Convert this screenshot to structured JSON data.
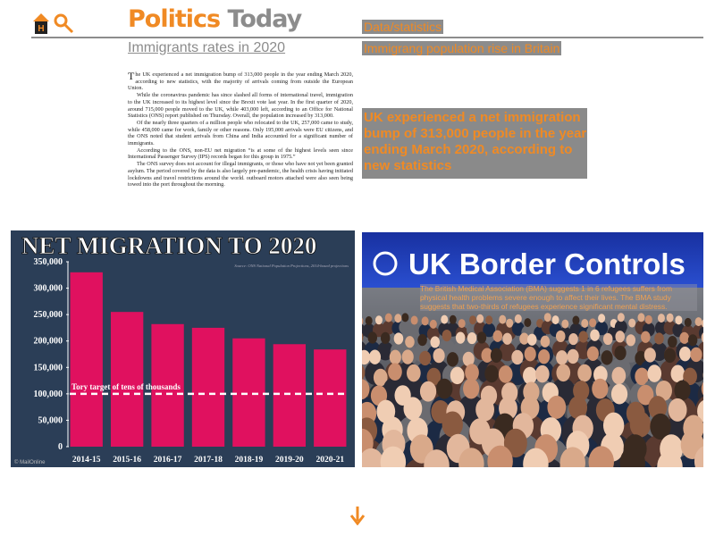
{
  "header": {
    "brand_1": "Politics",
    "brand_2": "Today",
    "subtitle": "Immigrants rates in 2020",
    "section": "Data/statistics",
    "section_title": "Immigrang population rise in Britain"
  },
  "article": {
    "paragraphs": [
      "The UK experienced a net immigration bump of 313,000 people in the year ending March 2020, according to new statistics, with the majority of arrivals coming from outside the European Union.",
      "While the coronavirus pandemic has since slashed all forms of international travel, immigration to the UK increased to its highest level since the Brexit vote last year. In the first quarter of 2020, around 715,000 people moved to the UK, while 403,000 left, according to an Office for National Statistics (ONS) report published on Thursday. Overall, the population increased by 313,000.",
      "Of the nearly three quarters of a million people who relocated to the UK, 257,000 came to study, while 458,000 came for work, family or other reasons. Only 195,000 arrivals were EU citizens, and the ONS noted that student arrivals from China and India accounted for a significant number of immigrants.",
      "According to the ONS, non-EU net migration “is at some of the highest levels seen since International Passenger Survey (IPS) records began for this group in 1975.”",
      "The ONS survey does not account for illegal immigrants, or those who have not yet been granted asylum. The period covered by the data is also largely pre-pandemic, the health crisis having initiated lockdowns and travel restrictions around the world. outboard motors attached were also seen being towed into the port throughout the morning."
    ]
  },
  "pull_quote": "UK experienced a net immigration bump of 313,000 people in the year ending March 2020, according to new statistics",
  "chart_data": {
    "type": "bar",
    "title": "NET MIGRATION TO 2020",
    "source": "Source: ONS National Population Projections, 2014-based projections",
    "categories": [
      "2014-15",
      "2015-16",
      "2016-17",
      "2017-18",
      "2018-19",
      "2019-20",
      "2020-21"
    ],
    "values": [
      330000,
      255000,
      232000,
      225000,
      205000,
      194000,
      184000
    ],
    "color": "#e0115f",
    "ylim": [
      0,
      350000
    ],
    "yticks": [
      0,
      {
        "value": 50000,
        "label": "50,000"
      },
      {
        "value": 100000,
        "label": "100,000"
      },
      {
        "value": 150000,
        "label": "150,000"
      },
      {
        "value": 200000,
        "label": "200,000"
      },
      {
        "value": 250000,
        "label": "250,000"
      },
      {
        "value": 300000,
        "label": "300,000"
      },
      {
        "value": 350000,
        "label": "350,000"
      }
    ],
    "target": {
      "value": 100000,
      "label": "Tory target of tens of thousands"
    },
    "credit": "© MailOnline"
  },
  "photo": {
    "sign": "UK Border Controls",
    "caption": "The British Medical Association (BMA) suggests 1 in 6 refugees suffers from physical health problems severe enough to affect their lives. The BMA study suggests that two-thirds of refugees experience significant mental distress."
  }
}
